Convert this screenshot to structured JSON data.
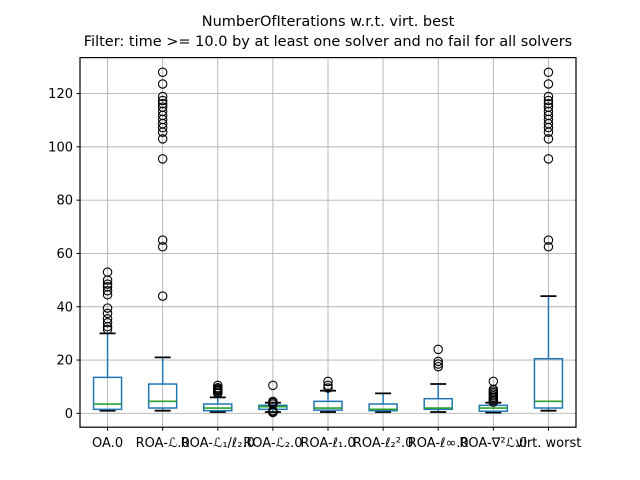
{
  "figure": {
    "title": "NumberOfIterations w.r.t. virt. best",
    "subtitle": "Filter: time >= 10.0 by at least one solver and no fail for all solvers"
  },
  "colors": {
    "box": "#1f77b4",
    "whisker": "#1f77b4",
    "median": "#2ca02c",
    "cap": "#000000",
    "flier": "#000000",
    "grid": "#b2b2b2",
    "frame": "#000000",
    "text": "#000000",
    "background": "#ffffff"
  },
  "chart_data": {
    "type": "boxplot",
    "title": "NumberOfIterations w.r.t. virt. best",
    "subtitle": "Filter: time >= 10.0 by at least one solver and no fail for all solvers",
    "xlabel": "",
    "ylabel": "",
    "grid": true,
    "yticks": [
      0,
      20,
      40,
      60,
      80,
      100,
      120
    ],
    "ylim": [
      -5.2,
      133.5
    ],
    "categories": [
      "OA.0",
      "ROA-ℒ.0",
      "ROA-ℒ₁/ℓ₂.0",
      "ROA-ℒ₂.0",
      "ROA-ℓ₁.0",
      "ROA-ℓ₂².0",
      "ROA-ℓ∞.0",
      "ROA-∇²ℒ.0",
      "virt. worst"
    ],
    "boxes": [
      {
        "label": "OA.0",
        "whislo": 1,
        "q1": 1.5,
        "med": 3.5,
        "q3": 13.5,
        "whishi": 30,
        "fliers": [
          31.5,
          32.5,
          34,
          35.5,
          37.5,
          39.5,
          44.5,
          46,
          47.5,
          48.5,
          50,
          53
        ]
      },
      {
        "label": "ROA-ℒ.0",
        "whislo": 1,
        "q1": 2,
        "med": 4.5,
        "q3": 11,
        "whishi": 21,
        "fliers": [
          44,
          62.5,
          65,
          95.5,
          103,
          105.5,
          107.2,
          108.7,
          110.3,
          111.8,
          113.3,
          114.9,
          116.2,
          117.4,
          118.9,
          123.6,
          128
        ]
      },
      {
        "label": "ROA-ℒ₁/ℓ₂.0",
        "whislo": 0.5,
        "q1": 1,
        "med": 2,
        "q3": 3.5,
        "whishi": 6,
        "fliers": [
          7.5,
          8,
          8.5,
          8.8,
          9.2,
          9.6,
          10.5
        ]
      },
      {
        "label": "ROA-ℒ₂.0",
        "whislo": 0.5,
        "q1": 1.5,
        "med": 2.5,
        "q3": 3,
        "whishi": 4,
        "fliers": [
          0.3,
          0.6,
          1,
          3.5,
          4,
          4.5,
          10.5
        ]
      },
      {
        "label": "ROA-ℓ₁.0",
        "whislo": 0.5,
        "q1": 1.2,
        "med": 2,
        "q3": 4.5,
        "whishi": 8.5,
        "fliers": [
          9.5,
          10.5,
          12
        ]
      },
      {
        "label": "ROA-ℓ₂².0",
        "whislo": 0.5,
        "q1": 1,
        "med": 1.5,
        "q3": 3.5,
        "whishi": 7.5,
        "fliers": []
      },
      {
        "label": "ROA-ℓ∞.0",
        "whislo": 0.5,
        "q1": 1.5,
        "med": 2,
        "q3": 5.5,
        "whishi": 11,
        "fliers": [
          17.5,
          18.5,
          19.5,
          24
        ]
      },
      {
        "label": "ROA-∇²ℒ.0",
        "whislo": 0.3,
        "q1": 0.8,
        "med": 2,
        "q3": 3,
        "whishi": 4,
        "fliers": [
          4.2,
          4.8,
          5.4,
          6,
          6.6,
          7.2,
          7.8,
          8.4,
          9,
          12
        ]
      },
      {
        "label": "virt. worst",
        "whislo": 1,
        "q1": 2,
        "med": 4.5,
        "q3": 20.5,
        "whishi": 44,
        "fliers": [
          62.5,
          65,
          95.5,
          103,
          105.5,
          107.2,
          108.7,
          110.3,
          111.8,
          113.3,
          114.9,
          116.2,
          117.4,
          118.9,
          123.6,
          128
        ]
      }
    ]
  }
}
